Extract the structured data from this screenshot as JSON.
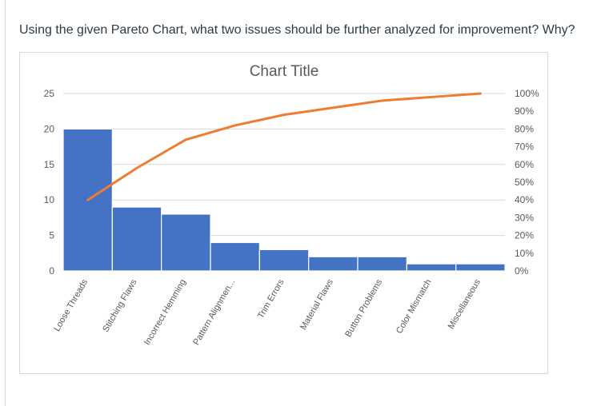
{
  "question": "Using the given Pareto Chart, what two issues should be further analyzed for improvement? Why?",
  "colors": {
    "bar": "#4472c4",
    "line": "#ed7d31",
    "grid": "#d9d9d9",
    "text": "#595959"
  },
  "chart_data": {
    "type": "bar",
    "title": "Chart Title",
    "categories": [
      "Loose Threads",
      "Stitching Flaws",
      "Incorrect Hemming",
      "Pattern Alignmen...",
      "Trim Errors",
      "Material Flaws",
      "Button Problems",
      "Color Mismatch",
      "Miscellaneous"
    ],
    "series": [
      {
        "type": "bar",
        "values": [
          20,
          9,
          8,
          4,
          3,
          2,
          2,
          1,
          1
        ]
      },
      {
        "type": "line",
        "axis": "secondary",
        "values": [
          40,
          58,
          74,
          82,
          88,
          92,
          96,
          98,
          100
        ]
      }
    ],
    "ylim": [
      0,
      25
    ],
    "yticks": [
      0,
      5,
      10,
      15,
      20,
      25
    ],
    "y2lim": [
      0,
      100
    ],
    "y2ticks": [
      "0%",
      "10%",
      "20%",
      "30%",
      "40%",
      "50%",
      "60%",
      "70%",
      "80%",
      "90%",
      "100%"
    ],
    "grid": "horizontal",
    "legend": "none"
  }
}
